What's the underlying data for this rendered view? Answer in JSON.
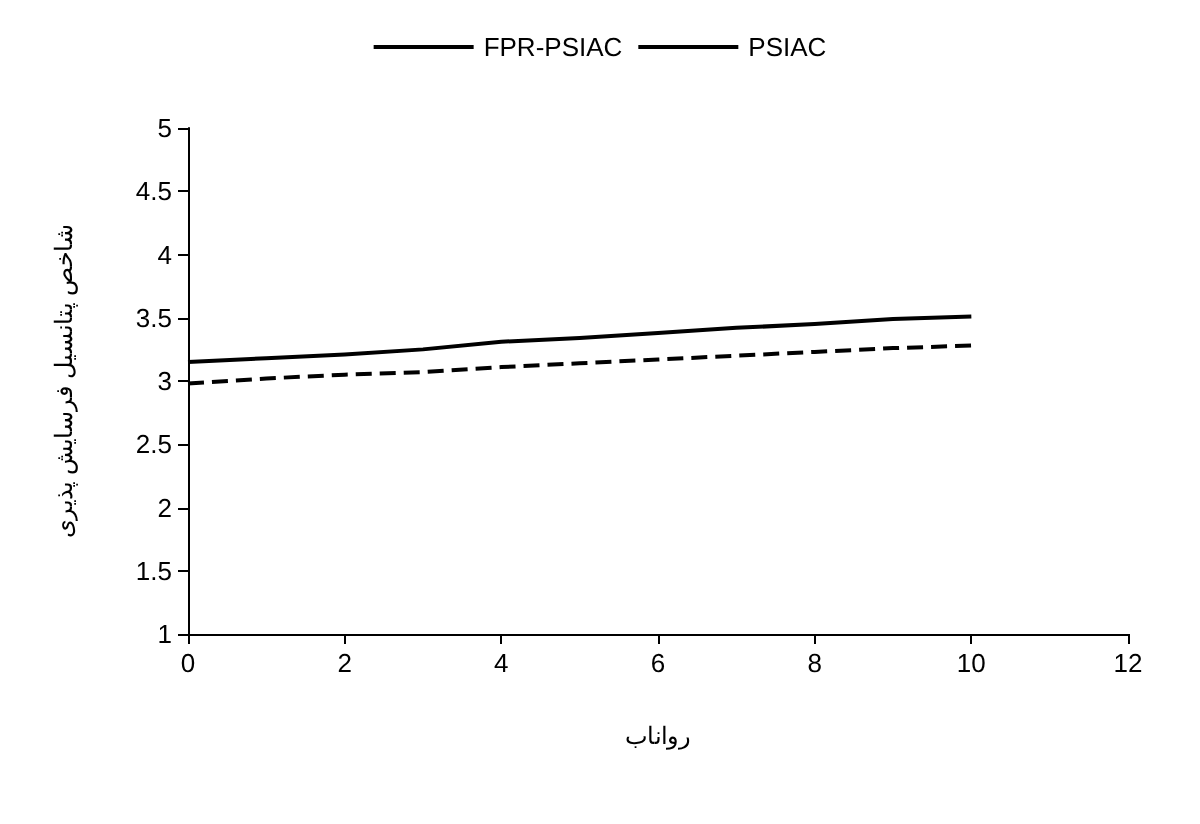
{
  "chart_data": {
    "type": "line",
    "xlabel": "رواناب",
    "ylabel": "شاخص پتانسیل فرسایش پذیری",
    "x": [
      0,
      1,
      2,
      3,
      4,
      5,
      6,
      7,
      8,
      9,
      10
    ],
    "series": [
      {
        "name": "FPR-PSIAC",
        "color": "#000000",
        "line_style": "solid",
        "values": [
          3.15,
          3.18,
          3.21,
          3.25,
          3.31,
          3.34,
          3.38,
          3.42,
          3.45,
          3.49,
          3.51
        ]
      },
      {
        "name": "PSIAC",
        "color": "#000000",
        "line_style": "dashed",
        "values": [
          2.98,
          3.02,
          3.05,
          3.07,
          3.11,
          3.14,
          3.17,
          3.2,
          3.23,
          3.26,
          3.28
        ]
      }
    ],
    "xlim": [
      0,
      12
    ],
    "xticks": [
      0,
      2,
      4,
      6,
      8,
      10,
      12
    ],
    "ylim": [
      1,
      5
    ],
    "yticks": [
      1,
      1.5,
      2,
      2.5,
      3,
      3.5,
      4,
      4.5,
      5
    ],
    "grid": false,
    "legend": "top",
    "marker": "none"
  }
}
